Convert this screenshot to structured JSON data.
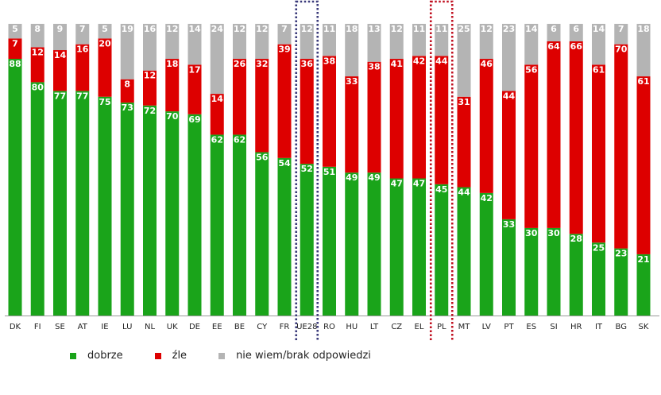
{
  "chart_data": {
    "type": "bar",
    "stacked": true,
    "ylim": [
      0,
      100
    ],
    "categories": [
      "DK",
      "FI",
      "SE",
      "AT",
      "IE",
      "LU",
      "NL",
      "UK",
      "DE",
      "EE",
      "BE",
      "CY",
      "FR",
      "UE28",
      "RO",
      "HU",
      "LT",
      "CZ",
      "EL",
      "PL",
      "MT",
      "LV",
      "PT",
      "ES",
      "SI",
      "HR",
      "IT",
      "BG",
      "SK"
    ],
    "series": [
      {
        "name": "dobrze",
        "color": "#1aa41a",
        "values": [
          88,
          80,
          77,
          77,
          75,
          73,
          72,
          70,
          69,
          62,
          62,
          56,
          54,
          52,
          51,
          49,
          49,
          47,
          47,
          45,
          44,
          42,
          33,
          30,
          30,
          28,
          25,
          23,
          21
        ]
      },
      {
        "name": "źle",
        "color": "#dd0000",
        "values": [
          7,
          12,
          14,
          16,
          20,
          8,
          12,
          18,
          17,
          14,
          26,
          32,
          39,
          36,
          38,
          33,
          38,
          41,
          42,
          44,
          31,
          46,
          44,
          56,
          64,
          66,
          61,
          70,
          61
        ]
      },
      {
        "name": "nie wiem/brak odpowiedzi",
        "color": "#b4b4b4",
        "values": [
          5,
          8,
          9,
          7,
          5,
          19,
          16,
          12,
          14,
          24,
          12,
          12,
          7,
          12,
          11,
          18,
          13,
          12,
          11,
          11,
          25,
          12,
          23,
          14,
          6,
          6,
          14,
          7,
          18
        ]
      }
    ],
    "highlighted": [
      {
        "category": "UE28",
        "color": "#3a3a7a"
      },
      {
        "category": "PL",
        "color": "#c01020"
      }
    ],
    "flags": {
      "DK": {
        "type": "nordic",
        "bg": "#c8102e",
        "cross": "#ffffff"
      },
      "FI": {
        "type": "nordic",
        "bg": "#ffffff",
        "cross": "#1a4fa0"
      },
      "SE": {
        "type": "nordic",
        "bg": "#1f68b0",
        "cross": "#f5c400"
      },
      "AT": {
        "type": "h",
        "colors": [
          "#ed2939",
          "#ffffff",
          "#ed2939"
        ]
      },
      "IE": {
        "type": "v",
        "colors": [
          "#169b62",
          "#ffffff",
          "#ff883e"
        ]
      },
      "LU": {
        "type": "h",
        "colors": [
          "#ed2939",
          "#ffffff",
          "#00a1de"
        ]
      },
      "NL": {
        "type": "h",
        "colors": [
          "#ae1c28",
          "#ffffff",
          "#21468b"
        ]
      },
      "UK": {
        "type": "uk"
      },
      "DE": {
        "type": "h",
        "colors": [
          "#000000",
          "#dd0000",
          "#ffce00"
        ]
      },
      "EE": {
        "type": "h",
        "colors": [
          "#0072ce",
          "#000000",
          "#ffffff"
        ]
      },
      "BE": {
        "type": "v",
        "colors": [
          "#000000",
          "#fdda24",
          "#ef3340"
        ]
      },
      "CY": {
        "type": "plain",
        "colors": [
          "#f4f0e6"
        ],
        "mark": "#d57800"
      },
      "FR": {
        "type": "v",
        "colors": [
          "#0055a4",
          "#ffffff",
          "#ef4135"
        ]
      },
      "UE28": {
        "type": "eu"
      },
      "RO": {
        "type": "v",
        "colors": [
          "#002b7f",
          "#fcd116",
          "#ce1126"
        ]
      },
      "HU": {
        "type": "h",
        "colors": [
          "#ce2939",
          "#ffffff",
          "#477050"
        ]
      },
      "LT": {
        "type": "h",
        "colors": [
          "#fdb913",
          "#006a44",
          "#c1272d"
        ]
      },
      "CZ": {
        "type": "cz"
      },
      "EL": {
        "type": "stripes9",
        "colors": [
          "#0d5eaf",
          "#ffffff"
        ]
      },
      "PL": {
        "type": "h2",
        "colors": [
          "#ffffff",
          "#dc143c"
        ]
      },
      "MT": {
        "type": "v2",
        "colors": [
          "#ffffff",
          "#cf142b"
        ]
      },
      "LV": {
        "type": "h",
        "colors": [
          "#9e3039",
          "#ffffff",
          "#9e3039"
        ]
      },
      "PT": {
        "type": "pt"
      },
      "ES": {
        "type": "h",
        "colors": [
          "#c60b1e",
          "#ffc400",
          "#c60b1e"
        ]
      },
      "SI": {
        "type": "h",
        "colors": [
          "#ffffff",
          "#005ce5",
          "#ed1c24"
        ]
      },
      "HR": {
        "type": "h",
        "colors": [
          "#ff0000",
          "#ffffff",
          "#171796"
        ]
      },
      "IT": {
        "type": "v",
        "colors": [
          "#009246",
          "#ffffff",
          "#ce2b37"
        ]
      },
      "BG": {
        "type": "h",
        "colors": [
          "#ffffff",
          "#00966e",
          "#d62612"
        ]
      },
      "SK": {
        "type": "h",
        "colors": [
          "#ffffff",
          "#0b4ea2",
          "#ee1c25"
        ]
      }
    }
  }
}
